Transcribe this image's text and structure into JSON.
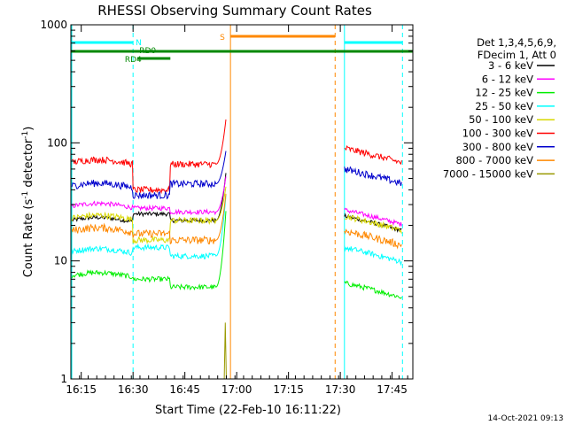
{
  "chart_data": {
    "type": "line",
    "title": "RHESSI Observing Summary Count Rates",
    "xlabel": "Start Time (22-Feb-10 16:11:22)",
    "ylabel_prefix": "Count Rate (s",
    "ylabel_sup1": "-1",
    "ylabel_mid": " detector",
    "ylabel_sup2": "-1",
    "ylabel_suffix": ")",
    "y_scale": "log",
    "ylim": [
      1,
      1000
    ],
    "xlim_minutes": [
      16.2,
      17.85
    ],
    "x_ticks": [
      {
        "t": 16.25,
        "label": "16:15"
      },
      {
        "t": 16.5,
        "label": "16:30"
      },
      {
        "t": 16.75,
        "label": "16:45"
      },
      {
        "t": 17.0,
        "label": "17:00"
      },
      {
        "t": 17.25,
        "label": "17:15"
      },
      {
        "t": 17.5,
        "label": "17:30"
      },
      {
        "t": 17.75,
        "label": "17:45"
      }
    ],
    "y_ticks": [
      {
        "v": 1,
        "label": "1"
      },
      {
        "v": 10,
        "label": "10"
      },
      {
        "v": 100,
        "label": "100"
      },
      {
        "v": 1000,
        "label": "1000"
      }
    ],
    "legend_header": [
      "Det 1,3,4,5,6,9,",
      "FDecim 1, Att 0"
    ],
    "series": [
      {
        "name": "3 - 6 keV",
        "color": "#000000",
        "pre": 22,
        "mid": 25,
        "post": 22,
        "end": 24,
        "peak": 60
      },
      {
        "name": "6 - 12 keV",
        "color": "#ff00ff",
        "pre": 29,
        "mid": 28,
        "post": 26,
        "end": 27,
        "peak": 55
      },
      {
        "name": "12 - 25 keV",
        "color": "#00ee00",
        "pre": 7.5,
        "mid": 7,
        "post": 6,
        "end": 6.5,
        "peak": 30
      },
      {
        "name": "25 - 50 keV",
        "color": "#00ffff",
        "pre": 12,
        "mid": 13,
        "post": 11,
        "end": 13,
        "peak": 40
      },
      {
        "name": "50 - 100 keV",
        "color": "#d8d800",
        "pre": 23,
        "mid": 15,
        "post": 22,
        "end": 24,
        "peak": 45
      },
      {
        "name": "100 - 300 keV",
        "color": "#ff0000",
        "pre": 68,
        "mid": 40,
        "post": 66,
        "end": 90,
        "peak": 170
      },
      {
        "name": "300 - 800 keV",
        "color": "#0000cc",
        "pre": 43,
        "mid": 36,
        "post": 45,
        "end": 60,
        "peak": 90
      },
      {
        "name": "800 - 7000 keV",
        "color": "#ff8800",
        "pre": 18,
        "mid": 17,
        "post": 15,
        "end": 18,
        "peak": 40
      },
      {
        "name": "7000 - 15000 keV",
        "color": "#999900",
        "pre": null,
        "mid": null,
        "post": null,
        "end": null,
        "peak": 3
      }
    ],
    "annotations": [
      {
        "label": "N",
        "color": "#00ffff"
      },
      {
        "label": "S",
        "color": "#ff8800"
      },
      {
        "label": "RD0",
        "color": "#008800"
      },
      {
        "label": "RD4",
        "color": "#008800"
      }
    ]
  },
  "footer_date": "14-Oct-2021 09:13"
}
